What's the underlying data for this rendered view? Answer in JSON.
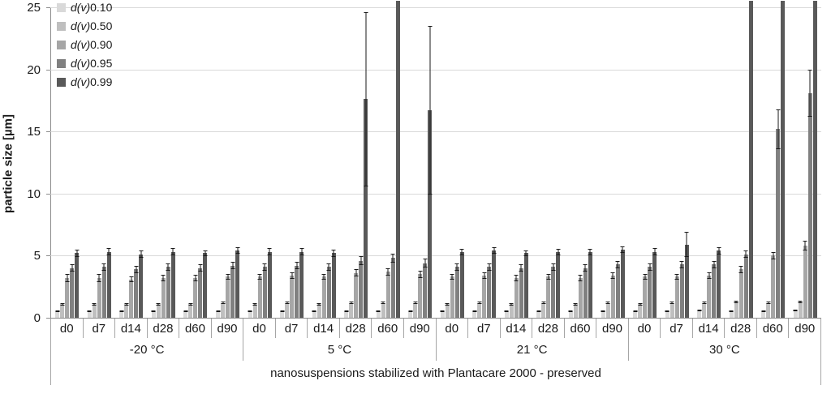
{
  "chart_data": {
    "type": "bar",
    "title": "nanosuspensions stabilized with Plantacare 2000 - preserved",
    "ylabel": "particle size [µm]",
    "ylim": [
      0,
      25
    ],
    "yticks": [
      0,
      5,
      10,
      15,
      20,
      25
    ],
    "grid": "horizontal",
    "legend_position": "top-left",
    "series_names": [
      "d(v)0.10",
      "d(v)0.50",
      "d(v)0.90",
      "d(v)0.95",
      "d(v)0.99"
    ],
    "series_colors": [
      "#d9d9d9",
      "#bfbfbf",
      "#a6a6a6",
      "#808080",
      "#595959"
    ],
    "clip_note": "values above 25 are drawn clipped at the top of the plot",
    "groups": [
      {
        "label": "-20 °C",
        "days": [
          {
            "label": "d0",
            "values": [
              0.5,
              1.1,
              3.2,
              4.0,
              5.2
            ],
            "errors": [
              0.05,
              0.1,
              0.3,
              0.3,
              0.3
            ]
          },
          {
            "label": "d7",
            "values": [
              0.5,
              1.1,
              3.2,
              4.1,
              5.3
            ],
            "errors": [
              0.05,
              0.1,
              0.3,
              0.3,
              0.3
            ]
          },
          {
            "label": "d14",
            "values": [
              0.5,
              1.1,
              3.1,
              3.9,
              5.1
            ],
            "errors": [
              0.05,
              0.1,
              0.25,
              0.3,
              0.3
            ]
          },
          {
            "label": "d28",
            "values": [
              0.5,
              1.1,
              3.2,
              4.1,
              5.3
            ],
            "errors": [
              0.05,
              0.1,
              0.25,
              0.3,
              0.3
            ]
          },
          {
            "label": "d60",
            "values": [
              0.5,
              1.1,
              3.2,
              4.0,
              5.2
            ],
            "errors": [
              0.05,
              0.1,
              0.25,
              0.3,
              0.25
            ]
          },
          {
            "label": "d90",
            "values": [
              0.5,
              1.2,
              3.3,
              4.2,
              5.4
            ],
            "errors": [
              0.05,
              0.1,
              0.25,
              0.3,
              0.25
            ]
          }
        ]
      },
      {
        "label": "5 °C",
        "days": [
          {
            "label": "d0",
            "values": [
              0.5,
              1.1,
              3.3,
              4.1,
              5.3
            ],
            "errors": [
              0.05,
              0.1,
              0.25,
              0.3,
              0.3
            ]
          },
          {
            "label": "d7",
            "values": [
              0.5,
              1.2,
              3.4,
              4.2,
              5.3
            ],
            "errors": [
              0.05,
              0.1,
              0.25,
              0.3,
              0.3
            ]
          },
          {
            "label": "d14",
            "values": [
              0.5,
              1.1,
              3.3,
              4.1,
              5.2
            ],
            "errors": [
              0.05,
              0.1,
              0.25,
              0.3,
              0.3
            ]
          },
          {
            "label": "d28",
            "values": [
              0.5,
              1.2,
              3.6,
              4.6,
              17.6
            ],
            "errors": [
              0.05,
              0.1,
              0.3,
              0.35,
              7.0
            ]
          },
          {
            "label": "d60",
            "values": [
              0.5,
              1.2,
              3.7,
              4.8,
              26
            ],
            "errors": [
              0.05,
              0.1,
              0.3,
              0.35,
              0
            ]
          },
          {
            "label": "d90",
            "values": [
              0.5,
              1.2,
              3.5,
              4.4,
              16.7
            ],
            "errors": [
              0.05,
              0.1,
              0.3,
              0.35,
              6.8
            ]
          }
        ]
      },
      {
        "label": "21 °C",
        "days": [
          {
            "label": "d0",
            "values": [
              0.5,
              1.1,
              3.3,
              4.1,
              5.3
            ],
            "errors": [
              0.05,
              0.1,
              0.25,
              0.3,
              0.25
            ]
          },
          {
            "label": "d7",
            "values": [
              0.5,
              1.2,
              3.4,
              4.1,
              5.4
            ],
            "errors": [
              0.05,
              0.1,
              0.25,
              0.3,
              0.25
            ]
          },
          {
            "label": "d14",
            "values": [
              0.5,
              1.1,
              3.2,
              4.0,
              5.2
            ],
            "errors": [
              0.05,
              0.1,
              0.25,
              0.3,
              0.25
            ]
          },
          {
            "label": "d28",
            "values": [
              0.5,
              1.2,
              3.3,
              4.1,
              5.3
            ],
            "errors": [
              0.05,
              0.1,
              0.25,
              0.3,
              0.25
            ]
          },
          {
            "label": "d60",
            "values": [
              0.5,
              1.1,
              3.2,
              4.0,
              5.3
            ],
            "errors": [
              0.05,
              0.1,
              0.25,
              0.3,
              0.25
            ]
          },
          {
            "label": "d90",
            "values": [
              0.5,
              1.2,
              3.4,
              4.3,
              5.5
            ],
            "errors": [
              0.05,
              0.1,
              0.25,
              0.3,
              0.25
            ]
          }
        ]
      },
      {
        "label": "30 °C",
        "days": [
          {
            "label": "d0",
            "values": [
              0.5,
              1.1,
              3.3,
              4.1,
              5.3
            ],
            "errors": [
              0.05,
              0.1,
              0.25,
              0.3,
              0.3
            ]
          },
          {
            "label": "d7",
            "values": [
              0.5,
              1.2,
              3.3,
              4.3,
              5.9
            ],
            "errors": [
              0.05,
              0.1,
              0.25,
              0.3,
              1.0
            ]
          },
          {
            "label": "d14",
            "values": [
              0.6,
              1.2,
              3.4,
              4.3,
              5.4
            ],
            "errors": [
              0.05,
              0.1,
              0.25,
              0.3,
              0.3
            ]
          },
          {
            "label": "d28",
            "values": [
              0.5,
              1.3,
              3.9,
              5.1,
              26
            ],
            "errors": [
              0.05,
              0.1,
              0.3,
              0.3,
              0
            ]
          },
          {
            "label": "d60",
            "values": [
              0.5,
              1.2,
              5.0,
              15.2,
              26
            ],
            "errors": [
              0.05,
              0.1,
              0.3,
              1.6,
              0
            ]
          },
          {
            "label": "d90",
            "values": [
              0.6,
              1.3,
              5.8,
              18.1,
              26
            ],
            "errors": [
              0.05,
              0.1,
              0.4,
              1.9,
              0
            ]
          }
        ]
      }
    ]
  }
}
